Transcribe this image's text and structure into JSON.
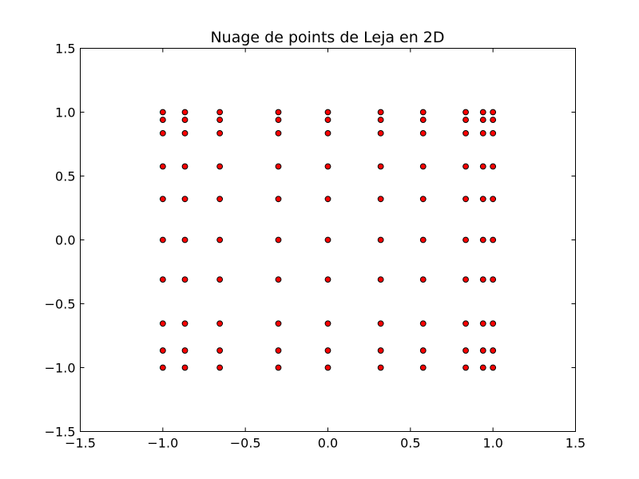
{
  "chart_data": {
    "type": "scatter",
    "title": "Nuage de points de Leja en 2D",
    "xlabel": "",
    "ylabel": "",
    "xlim": [
      -1.5,
      1.5
    ],
    "ylim": [
      -1.5,
      1.5
    ],
    "grid": false,
    "marker_color": "#ff0000",
    "marker_edge_color": "#000000",
    "x_grid_values": [
      -1.0,
      -0.866,
      -0.655,
      -0.3,
      0.0,
      0.32,
      0.577,
      0.835,
      0.94,
      1.0
    ],
    "y_grid_values": [
      -1.0,
      -0.866,
      -0.655,
      -0.31,
      0.0,
      0.32,
      0.575,
      0.835,
      0.94,
      1.0
    ],
    "x_tick_labels": [
      {
        "value": -1.5,
        "label": "−1.5"
      },
      {
        "value": -1.0,
        "label": "−1.0"
      },
      {
        "value": -0.5,
        "label": "−0.5"
      },
      {
        "value": 0.0,
        "label": "0.0"
      },
      {
        "value": 0.5,
        "label": "0.5"
      },
      {
        "value": 1.0,
        "label": "1.0"
      },
      {
        "value": 1.5,
        "label": "1.5"
      }
    ],
    "y_tick_labels": [
      {
        "value": -1.5,
        "label": "−1.5"
      },
      {
        "value": -1.0,
        "label": "−1.0"
      },
      {
        "value": -0.5,
        "label": "−0.5"
      },
      {
        "value": 0.0,
        "label": "0.0"
      },
      {
        "value": 0.5,
        "label": "0.5"
      },
      {
        "value": 1.0,
        "label": "1.0"
      },
      {
        "value": 1.5,
        "label": "1.5"
      }
    ]
  }
}
